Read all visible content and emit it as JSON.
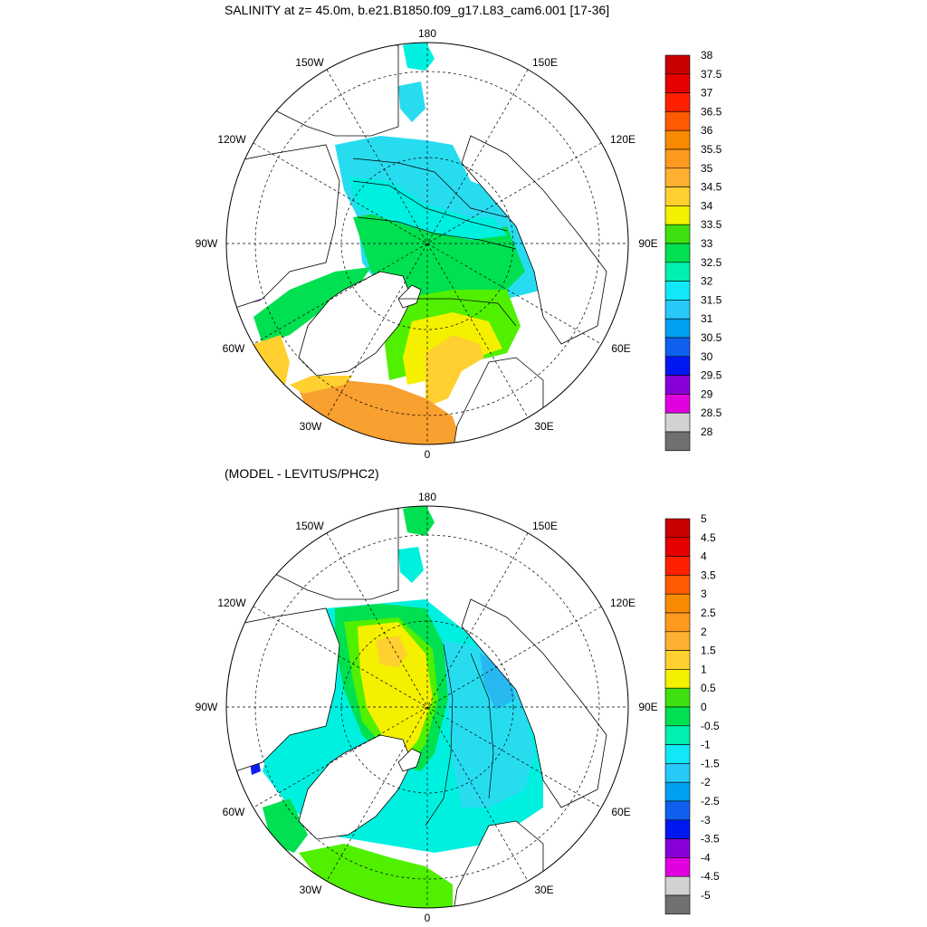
{
  "colors": {
    "ocean_cyan": "#00f0e0",
    "ocean_lightblue": "#28dcf0",
    "ocean_green": "#00e050",
    "ocean_lightgreen": "#50f000",
    "yellow": "#f4f000",
    "light_orange": "#ffd030",
    "mid_orange": "#f8a030",
    "orange": "#f09020",
    "blue": "#0a20f0",
    "purple": "#9a10d8",
    "land": "#ffffff"
  },
  "panels": [
    {
      "title": "SALINITY at z=  45.0m, b.e21.B1850.f09_g17.L83_cam6.001 [17-36]",
      "lon_labels": [
        "180",
        "150E",
        "120E",
        "90E",
        "60E",
        "30E",
        "0",
        "30W",
        "60W",
        "90W",
        "120W",
        "150W"
      ],
      "colorbar": {
        "labels": [
          "38",
          "37.5",
          "37",
          "36.5",
          "36",
          "35.5",
          "35",
          "34.5",
          "34",
          "33.5",
          "33",
          "32.5",
          "32",
          "31.5",
          "31",
          "30.5",
          "30",
          "29.5",
          "29",
          "28.5",
          "28"
        ],
        "colors": [
          "#c80000",
          "#e60000",
          "#ff2000",
          "#ff5a00",
          "#f88a00",
          "#ff9a20",
          "#ffb030",
          "#ffd030",
          "#f4f000",
          "#40e010",
          "#00e050",
          "#00f0b0",
          "#10e8f8",
          "#28c8f8",
          "#00a0f0",
          "#1060f0",
          "#0018f0",
          "#8800d8",
          "#e000e0",
          "#d2d2d2",
          "#707070"
        ]
      }
    },
    {
      "title": "(MODEL - LEVITUS/PHC2)",
      "lon_labels": [
        "180",
        "150E",
        "120E",
        "90E",
        "60E",
        "30E",
        "0",
        "30W",
        "60W",
        "90W",
        "120W",
        "150W"
      ],
      "colorbar": {
        "labels": [
          "5",
          "4.5",
          "4",
          "3.5",
          "3",
          "2.5",
          "2",
          "1.5",
          "1",
          "0.5",
          "0",
          "-0.5",
          "-1",
          "-1.5",
          "-2",
          "-2.5",
          "-3",
          "-3.5",
          "-4",
          "-4.5",
          "-5"
        ],
        "colors": [
          "#c80000",
          "#e60000",
          "#ff2000",
          "#ff5a00",
          "#f88a00",
          "#ff9a20",
          "#ffb030",
          "#ffd030",
          "#f4f000",
          "#40e010",
          "#00e050",
          "#00f0b0",
          "#10e8f8",
          "#28c8f8",
          "#00a0f0",
          "#1060f0",
          "#0018f0",
          "#8800d8",
          "#e000e0",
          "#d2d2d2",
          "#707070"
        ]
      }
    }
  ]
}
